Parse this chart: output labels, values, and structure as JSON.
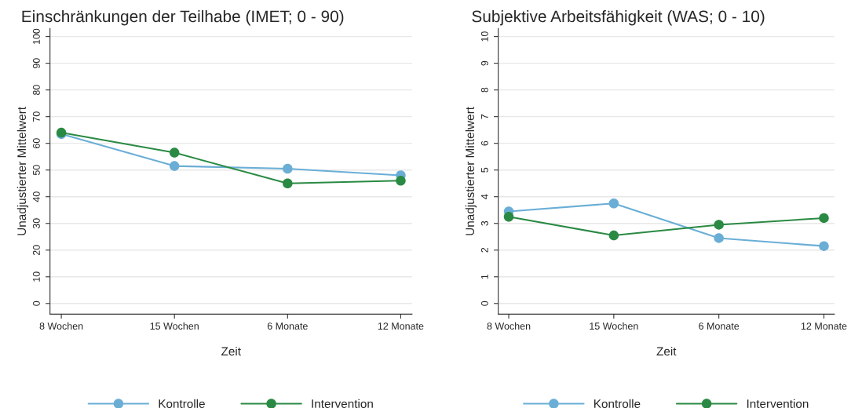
{
  "chart_data": [
    {
      "type": "line",
      "title": "Einschränkungen der Teilhabe (IMET; 0 - 90)",
      "xlabel": "Zeit",
      "ylabel": "Unadjustierter Mittelwert",
      "categories": [
        "8 Wochen",
        "15 Wochen",
        "6 Monate",
        "12 Monate"
      ],
      "series": [
        {
          "name": "Kontrolle",
          "color": "#6aaed6",
          "values": [
            63.5,
            51.5,
            50.5,
            48
          ]
        },
        {
          "name": "Intervention",
          "color": "#2a8a43",
          "values": [
            64,
            56.5,
            45,
            46
          ]
        }
      ],
      "ylim": [
        -4,
        103
      ],
      "yticks": [
        0,
        10,
        20,
        30,
        40,
        50,
        60,
        70,
        80,
        90,
        100
      ],
      "grid": "y",
      "legend": "bottom",
      "marker": "circle",
      "line_style": "solid"
    },
    {
      "type": "line",
      "title": "Subjektive Arbeitsfähigkeit (WAS; 0 - 10)",
      "xlabel": "Zeit",
      "ylabel": "Unadjustierter Mittelwert",
      "categories": [
        "8 Wochen",
        "15 Wochen",
        "6 Monate",
        "12 Monate"
      ],
      "series": [
        {
          "name": "Kontrolle",
          "color": "#6aaed6",
          "values": [
            3.45,
            3.75,
            2.45,
            2.15
          ]
        },
        {
          "name": "Intervention",
          "color": "#2a8a43",
          "values": [
            3.25,
            2.55,
            2.95,
            3.2
          ]
        }
      ],
      "ylim": [
        -0.4,
        10.3
      ],
      "yticks": [
        0,
        1,
        2,
        3,
        4,
        5,
        6,
        7,
        8,
        9,
        10
      ],
      "grid": "y",
      "legend": "bottom",
      "marker": "circle",
      "line_style": "solid"
    }
  ]
}
